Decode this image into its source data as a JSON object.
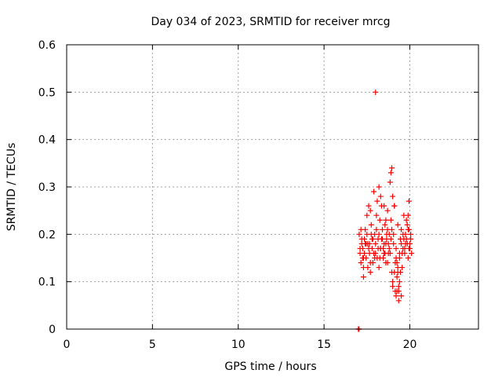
{
  "chart_data": {
    "type": "scatter",
    "title": "Day 034 of 2023, SRMTID for receiver mrcg",
    "xlabel": "GPS time / hours",
    "ylabel": "SRMTID / TECUs",
    "xlim": [
      0,
      24
    ],
    "ylim": [
      0,
      0.6
    ],
    "xticks": [
      0,
      5,
      10,
      15,
      20
    ],
    "xtick_labels": [
      "0",
      "5",
      "10",
      "15",
      "20"
    ],
    "yticks": [
      0,
      0.1,
      0.2,
      0.3,
      0.4,
      0.5,
      0.6
    ],
    "ytick_labels": [
      "0",
      "0.1",
      "0.2",
      "0.3",
      "0.4",
      "0.5",
      "0.6"
    ],
    "grid": true,
    "marker": "+",
    "color": "#ff0000",
    "series": [
      {
        "name": "SRMTID",
        "x": [
          17.0,
          17.02,
          17.04,
          17.05,
          17.1,
          17.15,
          17.2,
          17.25,
          17.3,
          17.35,
          17.4,
          17.45,
          17.5,
          17.55,
          17.6,
          17.65,
          17.7,
          17.75,
          17.8,
          17.85,
          17.9,
          17.95,
          18.0,
          18.05,
          18.1,
          18.15,
          18.2,
          18.25,
          18.3,
          18.35,
          18.4,
          18.45,
          18.5,
          18.55,
          18.6,
          18.65,
          18.7,
          18.75,
          18.8,
          18.85,
          18.9,
          18.95,
          19.0,
          19.05,
          19.1,
          19.15,
          19.2,
          19.25,
          19.3,
          19.35,
          19.4,
          19.45,
          19.5,
          19.55,
          19.6,
          19.65,
          19.7,
          19.75,
          19.8,
          19.85,
          19.9,
          19.95,
          20.0,
          20.05,
          20.1,
          17.1,
          17.2,
          17.3,
          17.4,
          17.5,
          17.6,
          17.7,
          17.8,
          17.9,
          18.0,
          18.1,
          18.2,
          18.3,
          18.4,
          18.5,
          18.6,
          18.7,
          18.8,
          18.9,
          19.0,
          19.1,
          19.2,
          19.3,
          19.4,
          19.5,
          19.6,
          19.7,
          19.8,
          19.9,
          20.0,
          17.15,
          17.35,
          17.55,
          17.75,
          17.95,
          18.15,
          18.35,
          18.55,
          18.75,
          18.95,
          19.15,
          19.35,
          19.55,
          19.75,
          19.95,
          17.25,
          17.45,
          17.65,
          17.85,
          18.05,
          18.25,
          18.45,
          18.65,
          18.85,
          19.05,
          19.25,
          19.45,
          19.65,
          19.85,
          20.05,
          18.0,
          18.9,
          18.95,
          18.2,
          18.3,
          17.7,
          19.0,
          19.1,
          19.3,
          19.4,
          19.5,
          19.2,
          19.25,
          19.35,
          19.9,
          19.95,
          17.3,
          18.5,
          18.6,
          18.7
        ],
        "y": [
          0.0,
          0.0,
          0.0,
          0.2,
          0.16,
          0.14,
          0.18,
          0.17,
          0.11,
          0.19,
          0.21,
          0.15,
          0.24,
          0.13,
          0.26,
          0.18,
          0.12,
          0.22,
          0.17,
          0.14,
          0.29,
          0.2,
          0.16,
          0.24,
          0.27,
          0.19,
          0.13,
          0.23,
          0.17,
          0.26,
          0.21,
          0.15,
          0.18,
          0.22,
          0.14,
          0.19,
          0.25,
          0.16,
          0.2,
          0.31,
          0.23,
          0.12,
          0.09,
          0.2,
          0.26,
          0.08,
          0.17,
          0.11,
          0.22,
          0.08,
          0.15,
          0.19,
          0.21,
          0.13,
          0.17,
          0.24,
          0.16,
          0.2,
          0.23,
          0.18,
          0.15,
          0.21,
          0.17,
          0.19,
          0.16,
          0.17,
          0.19,
          0.15,
          0.18,
          0.2,
          0.17,
          0.14,
          0.19,
          0.16,
          0.18,
          0.15,
          0.2,
          0.17,
          0.19,
          0.16,
          0.18,
          0.14,
          0.17,
          0.19,
          0.1,
          0.12,
          0.15,
          0.13,
          0.16,
          0.18,
          0.2,
          0.17,
          0.19,
          0.21,
          0.18,
          0.21,
          0.16,
          0.18,
          0.2,
          0.15,
          0.17,
          0.19,
          0.16,
          0.18,
          0.21,
          0.14,
          0.09,
          0.16,
          0.18,
          0.17,
          0.15,
          0.18,
          0.16,
          0.19,
          0.21,
          0.15,
          0.17,
          0.2,
          0.16,
          0.18,
          0.14,
          0.12,
          0.19,
          0.22,
          0.2,
          0.5,
          0.33,
          0.34,
          0.3,
          0.28,
          0.25,
          0.28,
          0.26,
          0.12,
          0.1,
          0.07,
          0.07,
          0.08,
          0.06,
          0.24,
          0.27,
          0.13,
          0.26,
          0.23,
          0.21
        ]
      }
    ]
  }
}
